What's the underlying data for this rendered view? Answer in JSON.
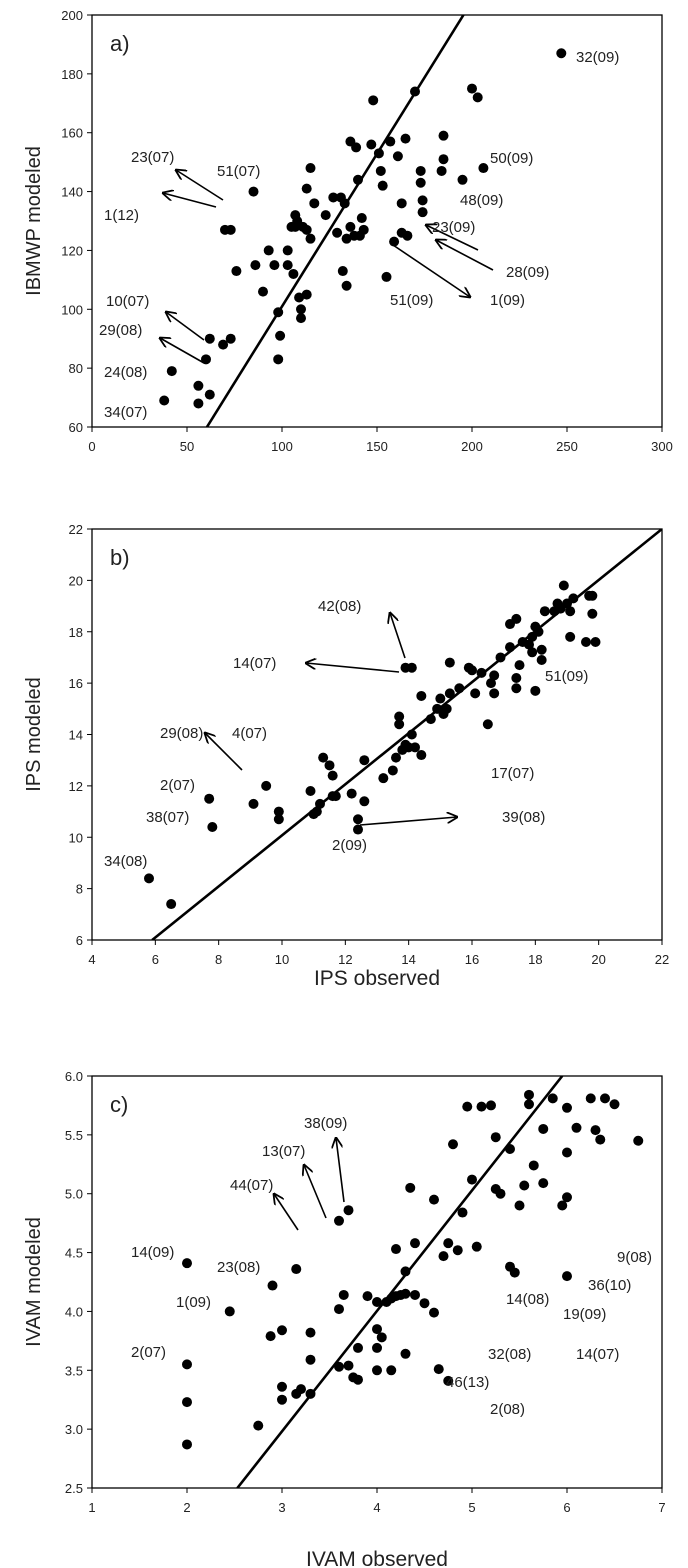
{
  "chart_data": [
    {
      "type": "scatter",
      "panel_label": "a)",
      "xlabel": "",
      "ylabel": "IBMWP modeled",
      "xlim": [
        0,
        300
      ],
      "ylim": [
        60,
        200
      ],
      "xticks": [
        0,
        50,
        100,
        150,
        200,
        250,
        300
      ],
      "yticks": [
        60,
        80,
        100,
        120,
        140,
        160,
        180,
        200
      ],
      "fit_line": [
        [
          60.5,
          60
        ],
        [
          195.5,
          200
        ]
      ],
      "points": [
        [
          38,
          69
        ],
        [
          42,
          79
        ],
        [
          56,
          68
        ],
        [
          56,
          74
        ],
        [
          60,
          83
        ],
        [
          62,
          71
        ],
        [
          62,
          90
        ],
        [
          69,
          88
        ],
        [
          73,
          90
        ],
        [
          70,
          127
        ],
        [
          73,
          127
        ],
        [
          76,
          113
        ],
        [
          85,
          140
        ],
        [
          86,
          115
        ],
        [
          90,
          106
        ],
        [
          93,
          120
        ],
        [
          96,
          115
        ],
        [
          98,
          83
        ],
        [
          99,
          91
        ],
        [
          98,
          99
        ],
        [
          103,
          115
        ],
        [
          103,
          120
        ],
        [
          105,
          128
        ],
        [
          106,
          112
        ],
        [
          107,
          132
        ],
        [
          107,
          128
        ],
        [
          108,
          130
        ],
        [
          109,
          104
        ],
        [
          110,
          100
        ],
        [
          110,
          97
        ],
        [
          111,
          128
        ],
        [
          113,
          141
        ],
        [
          113,
          105
        ],
        [
          113,
          127
        ],
        [
          115,
          148
        ],
        [
          115,
          124
        ],
        [
          117,
          136
        ],
        [
          123,
          132
        ],
        [
          127,
          138
        ],
        [
          129,
          126
        ],
        [
          131,
          138
        ],
        [
          132,
          113
        ],
        [
          133,
          136
        ],
        [
          134,
          108
        ],
        [
          134,
          124
        ],
        [
          136,
          157
        ],
        [
          136,
          128
        ],
        [
          138,
          125
        ],
        [
          139,
          155
        ],
        [
          140,
          144
        ],
        [
          141,
          125
        ],
        [
          142,
          131
        ],
        [
          143,
          127
        ],
        [
          147,
          156
        ],
        [
          148,
          171
        ],
        [
          151,
          153
        ],
        [
          152,
          147
        ],
        [
          153,
          142
        ],
        [
          155,
          111
        ],
        [
          157,
          157
        ],
        [
          159,
          123
        ],
        [
          161,
          152
        ],
        [
          163,
          126
        ],
        [
          163,
          136
        ],
        [
          165,
          158
        ],
        [
          166,
          125
        ],
        [
          170,
          174
        ],
        [
          173,
          147
        ],
        [
          173,
          143
        ],
        [
          174,
          137
        ],
        [
          174,
          133
        ],
        [
          184,
          147
        ],
        [
          185,
          151
        ],
        [
          185,
          159
        ],
        [
          195,
          144
        ],
        [
          200,
          175
        ],
        [
          203,
          172
        ],
        [
          206,
          148
        ],
        [
          247,
          187
        ]
      ],
      "annotations": [
        "32(09)",
        "23(07)",
        "51(07)",
        "50(09)",
        "1(12)",
        "48(09)",
        "23(09)",
        "28(09)",
        "10(07)",
        "51(09)",
        "1(09)",
        "29(08)",
        "24(08)",
        "34(07)"
      ]
    },
    {
      "type": "scatter",
      "panel_label": "b)",
      "xlabel": "IPS observed",
      "ylabel": "IPS modeled",
      "xlim": [
        4,
        22
      ],
      "ylim": [
        6,
        22
      ],
      "xticks": [
        4,
        6,
        8,
        10,
        12,
        14,
        16,
        18,
        20,
        22
      ],
      "yticks": [
        6,
        8,
        10,
        12,
        14,
        16,
        18,
        20,
        22
      ],
      "fit_line": [
        [
          5.9,
          6
        ],
        [
          22,
          22
        ]
      ],
      "points": [
        [
          5.8,
          8.4
        ],
        [
          6.5,
          7.4
        ],
        [
          7.7,
          11.5
        ],
        [
          7.8,
          10.4
        ],
        [
          9.1,
          11.3
        ],
        [
          9.5,
          12.0
        ],
        [
          9.9,
          10.7
        ],
        [
          9.9,
          11.0
        ],
        [
          10.9,
          11.8
        ],
        [
          11.0,
          10.9
        ],
        [
          11.1,
          11.0
        ],
        [
          11.2,
          11.3
        ],
        [
          11.3,
          13.1
        ],
        [
          11.5,
          12.8
        ],
        [
          11.6,
          11.6
        ],
        [
          11.6,
          12.4
        ],
        [
          11.7,
          11.6
        ],
        [
          12.2,
          11.7
        ],
        [
          12.4,
          10.3
        ],
        [
          12.4,
          10.7
        ],
        [
          12.6,
          11.4
        ],
        [
          12.6,
          13.0
        ],
        [
          13.2,
          12.3
        ],
        [
          13.5,
          12.6
        ],
        [
          13.6,
          13.1
        ],
        [
          13.7,
          14.4
        ],
        [
          13.7,
          14.7
        ],
        [
          13.8,
          13.4
        ],
        [
          13.9,
          13.6
        ],
        [
          14.0,
          13.5
        ],
        [
          14.1,
          14.0
        ],
        [
          14.2,
          13.5
        ],
        [
          14.4,
          13.2
        ],
        [
          13.9,
          16.6
        ],
        [
          14.1,
          16.6
        ],
        [
          14.4,
          15.5
        ],
        [
          14.7,
          14.6
        ],
        [
          14.9,
          15.0
        ],
        [
          15.0,
          15.4
        ],
        [
          15.1,
          14.8
        ],
        [
          15.2,
          15.0
        ],
        [
          15.3,
          15.6
        ],
        [
          15.3,
          16.8
        ],
        [
          15.6,
          15.8
        ],
        [
          15.9,
          16.6
        ],
        [
          16.0,
          16.5
        ],
        [
          16.1,
          15.6
        ],
        [
          16.3,
          16.4
        ],
        [
          16.5,
          14.4
        ],
        [
          16.6,
          16.0
        ],
        [
          16.7,
          16.3
        ],
        [
          16.7,
          15.6
        ],
        [
          16.9,
          17.0
        ],
        [
          17.2,
          17.4
        ],
        [
          17.2,
          18.3
        ],
        [
          17.4,
          18.5
        ],
        [
          17.4,
          15.8
        ],
        [
          17.4,
          16.2
        ],
        [
          17.5,
          16.7
        ],
        [
          17.6,
          17.6
        ],
        [
          17.8,
          17.5
        ],
        [
          17.9,
          17.2
        ],
        [
          17.9,
          17.8
        ],
        [
          18.0,
          18.2
        ],
        [
          18.0,
          15.7
        ],
        [
          18.1,
          18.0
        ],
        [
          18.2,
          17.3
        ],
        [
          18.2,
          16.9
        ],
        [
          18.3,
          18.8
        ],
        [
          18.6,
          18.8
        ],
        [
          18.7,
          19.1
        ],
        [
          18.8,
          18.9
        ],
        [
          18.9,
          19.8
        ],
        [
          19.0,
          19.1
        ],
        [
          19.1,
          18.8
        ],
        [
          19.1,
          17.8
        ],
        [
          19.2,
          19.3
        ],
        [
          19.6,
          17.6
        ],
        [
          19.7,
          19.4
        ],
        [
          19.8,
          19.4
        ],
        [
          19.8,
          18.7
        ],
        [
          19.9,
          17.6
        ]
      ],
      "annotations": [
        "42(08)",
        "14(07)",
        "51(09)",
        "29(08)",
        "4(07)",
        "17(07)",
        "2(07)",
        "38(07)",
        "39(08)",
        "2(09)",
        "34(08)"
      ]
    },
    {
      "type": "scatter",
      "panel_label": "c)",
      "xlabel": "IVAM observed",
      "ylabel": "IVAM modeled",
      "xlim": [
        1,
        7
      ],
      "ylim": [
        2.5,
        6.0
      ],
      "xticks": [
        1,
        2,
        3,
        4,
        5,
        6,
        7
      ],
      "yticks": [
        2.5,
        3.0,
        3.5,
        4.0,
        4.5,
        5.0,
        5.5,
        6.0
      ],
      "yticklabels": [
        "2.5",
        "3.0",
        "3.5",
        "4.0",
        "4.5",
        "5.0",
        "5.5",
        "6.0"
      ],
      "fit_line": [
        [
          2.53,
          2.5
        ],
        [
          5.95,
          6.0
        ]
      ],
      "points": [
        [
          2.0,
          4.41
        ],
        [
          2.0,
          3.55
        ],
        [
          2.0,
          3.23
        ],
        [
          2.0,
          2.87
        ],
        [
          2.45,
          4.0
        ],
        [
          2.9,
          4.22
        ],
        [
          2.75,
          3.03
        ],
        [
          2.88,
          3.79
        ],
        [
          3.0,
          3.84
        ],
        [
          3.0,
          3.36
        ],
        [
          3.0,
          3.25
        ],
        [
          3.15,
          4.36
        ],
        [
          3.15,
          3.3
        ],
        [
          3.2,
          3.34
        ],
        [
          3.3,
          3.82
        ],
        [
          3.3,
          3.59
        ],
        [
          3.3,
          3.3
        ],
        [
          3.6,
          4.02
        ],
        [
          3.6,
          3.53
        ],
        [
          3.6,
          4.77
        ],
        [
          3.65,
          4.14
        ],
        [
          3.7,
          4.86
        ],
        [
          3.7,
          3.54
        ],
        [
          3.75,
          3.44
        ],
        [
          3.8,
          3.42
        ],
        [
          3.8,
          3.69
        ],
        [
          3.9,
          4.13
        ],
        [
          4.0,
          4.08
        ],
        [
          4.0,
          3.85
        ],
        [
          4.0,
          3.69
        ],
        [
          4.0,
          3.5
        ],
        [
          4.05,
          3.78
        ],
        [
          4.1,
          4.08
        ],
        [
          4.15,
          4.11
        ],
        [
          4.15,
          3.5
        ],
        [
          4.2,
          4.53
        ],
        [
          4.2,
          4.13
        ],
        [
          4.25,
          4.14
        ],
        [
          4.3,
          4.34
        ],
        [
          4.3,
          4.15
        ],
        [
          4.3,
          3.64
        ],
        [
          4.35,
          5.05
        ],
        [
          4.4,
          4.58
        ],
        [
          4.4,
          4.14
        ],
        [
          4.5,
          4.07
        ],
        [
          4.6,
          4.95
        ],
        [
          4.6,
          3.99
        ],
        [
          4.65,
          3.51
        ],
        [
          4.7,
          4.47
        ],
        [
          4.75,
          3.41
        ],
        [
          4.75,
          4.58
        ],
        [
          4.8,
          5.42
        ],
        [
          4.85,
          4.52
        ],
        [
          4.9,
          4.84
        ],
        [
          4.95,
          5.74
        ],
        [
          5.0,
          5.12
        ],
        [
          5.05,
          4.55
        ],
        [
          5.1,
          5.74
        ],
        [
          5.2,
          5.75
        ],
        [
          5.25,
          5.48
        ],
        [
          5.25,
          5.04
        ],
        [
          5.3,
          5.0
        ],
        [
          5.4,
          5.38
        ],
        [
          5.4,
          4.38
        ],
        [
          5.45,
          4.33
        ],
        [
          5.5,
          4.9
        ],
        [
          5.55,
          5.07
        ],
        [
          5.6,
          5.84
        ],
        [
          5.6,
          5.76
        ],
        [
          5.65,
          5.24
        ],
        [
          5.75,
          5.55
        ],
        [
          5.75,
          5.09
        ],
        [
          5.85,
          5.81
        ],
        [
          5.95,
          4.9
        ],
        [
          6.0,
          5.73
        ],
        [
          6.0,
          5.35
        ],
        [
          6.0,
          4.97
        ],
        [
          6.0,
          4.3
        ],
        [
          6.1,
          5.56
        ],
        [
          6.25,
          5.81
        ],
        [
          6.3,
          5.54
        ],
        [
          6.35,
          5.46
        ],
        [
          6.4,
          5.81
        ],
        [
          6.5,
          5.76
        ],
        [
          6.75,
          5.45
        ]
      ],
      "annotations": [
        "38(09)",
        "13(07)",
        "44(07)",
        "9(08)",
        "36(10)",
        "19(09)",
        "14(09)",
        "23(08)",
        "14(08)",
        "1(09)",
        "32(08)",
        "14(07)",
        "2(07)",
        "46(13)",
        "2(08)"
      ]
    }
  ]
}
